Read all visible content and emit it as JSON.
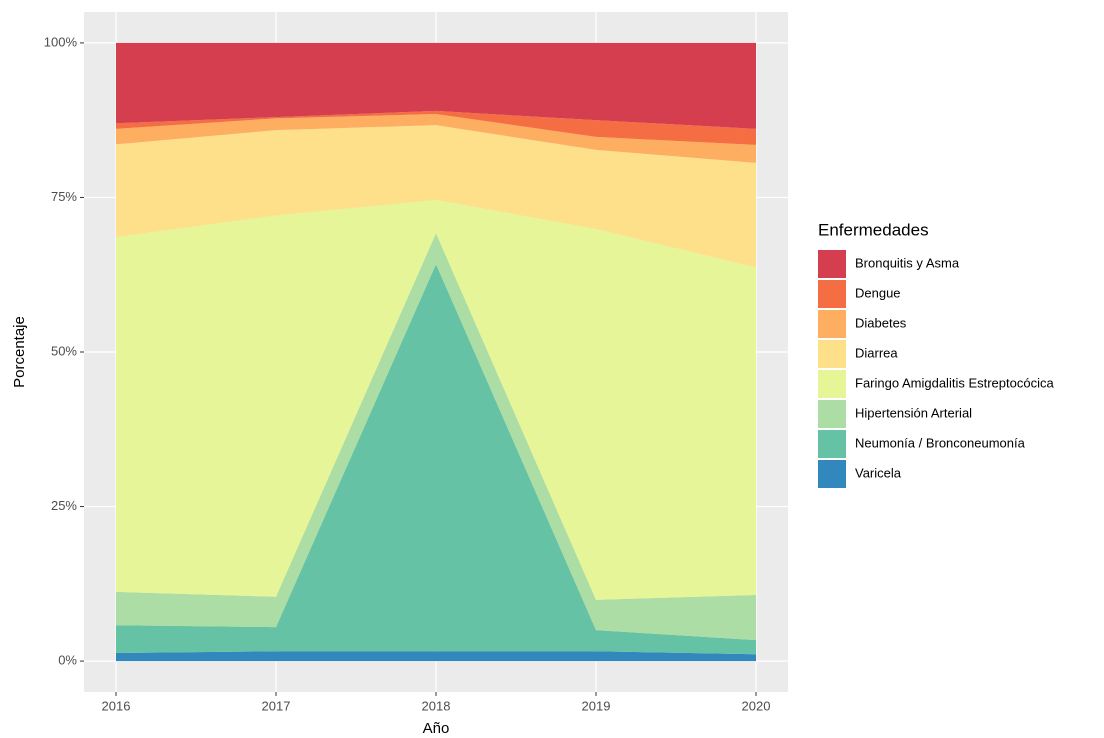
{
  "chart_data": {
    "type": "stacked_area",
    "x_label": "Año",
    "y_label": "Porcentaje",
    "legend_title": "Enfermedades",
    "x": [
      2016,
      2017,
      2018,
      2019,
      2020
    ],
    "series": [
      {
        "name": "Bronquitis y Asma",
        "color": "#D53E4F",
        "values": [
          13.0,
          12.0,
          11.0,
          12.5,
          13.9
        ]
      },
      {
        "name": "Dengue",
        "color": "#F46D43",
        "values": [
          0.9,
          0.2,
          0.5,
          2.7,
          2.6
        ]
      },
      {
        "name": "Diabetes",
        "color": "#FDAE61",
        "values": [
          2.5,
          1.9,
          1.8,
          2.1,
          2.9
        ]
      },
      {
        "name": "Diarrea",
        "color": "#FEE08B",
        "values": [
          15.0,
          13.8,
          12.1,
          12.8,
          16.9
        ]
      },
      {
        "name": "Faringo Amigdalitis Estreptocócica",
        "color": "#E6F598",
        "values": [
          57.4,
          61.7,
          5.4,
          60.0,
          53.0
        ]
      },
      {
        "name": "Hipertensión Arterial",
        "color": "#ABDDA4",
        "values": [
          5.4,
          4.9,
          5.0,
          4.9,
          7.3
        ]
      },
      {
        "name": "Neumonía / Bronconeumonía",
        "color": "#66C2A5",
        "values": [
          4.5,
          3.9,
          62.6,
          3.4,
          2.3
        ]
      },
      {
        "name": "Varicela",
        "color": "#3288BD",
        "values": [
          1.3,
          1.6,
          1.6,
          1.6,
          1.1
        ]
      }
    ],
    "xlim": [
      2015.8,
      2020.2
    ],
    "xticks": [
      2016,
      2017,
      2018,
      2019,
      2020
    ],
    "ylim": [
      -5,
      105
    ],
    "yticks": [
      {
        "value": 0,
        "label": "0%"
      },
      {
        "value": 25,
        "label": "25%"
      },
      {
        "value": 50,
        "label": "50%"
      },
      {
        "value": 75,
        "label": "75%"
      },
      {
        "value": 100,
        "label": "100%"
      }
    ],
    "grid": true,
    "legend_position": "right"
  }
}
